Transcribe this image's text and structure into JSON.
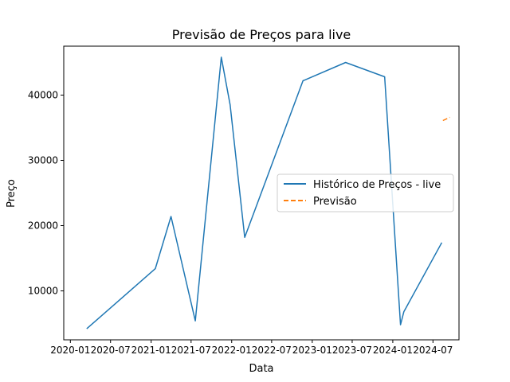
{
  "chart_data": {
    "type": "line",
    "title": "Previsão de Preços para live",
    "xlabel": "Data",
    "ylabel": "Preço",
    "x_tick_labels": [
      "2020-01",
      "2020-07",
      "2021-01",
      "2021-07",
      "2022-01",
      "2022-07",
      "2023-01",
      "2023-07",
      "2024-01",
      "2024-07"
    ],
    "x_tick_dates": [
      "2020-01-01",
      "2020-07-01",
      "2021-01-01",
      "2021-07-01",
      "2022-01-01",
      "2022-07-01",
      "2023-01-01",
      "2023-07-01",
      "2024-01-01",
      "2024-07-01"
    ],
    "y_tick_labels": [
      "10000",
      "20000",
      "30000",
      "40000"
    ],
    "y_ticks": [
      10000,
      20000,
      30000,
      40000
    ],
    "xlim": [
      "2019-12-02",
      "2024-10-27"
    ],
    "ylim": [
      2500,
      47500
    ],
    "grid": false,
    "legend_position": "center-right",
    "series": [
      {
        "name": "Histórico de Preços - live",
        "color": "#1f77b4",
        "style": "solid",
        "points": [
          [
            "2020-03-15",
            4200
          ],
          [
            "2021-01-20",
            13400
          ],
          [
            "2021-04-01",
            21400
          ],
          [
            "2021-07-20",
            5400
          ],
          [
            "2021-11-15",
            45800
          ],
          [
            "2021-12-25",
            38500
          ],
          [
            "2022-03-01",
            18200
          ],
          [
            "2022-11-20",
            42200
          ],
          [
            "2023-06-01",
            45000
          ],
          [
            "2023-11-25",
            42800
          ],
          [
            "2024-02-05",
            4800
          ],
          [
            "2024-02-20",
            6800
          ],
          [
            "2024-08-10",
            17400
          ]
        ]
      },
      {
        "name": "Previsão",
        "color": "#ff7f0e",
        "style": "dashed",
        "points": [
          [
            "2024-08-15",
            36100
          ],
          [
            "2024-09-15",
            36600
          ]
        ]
      }
    ]
  }
}
